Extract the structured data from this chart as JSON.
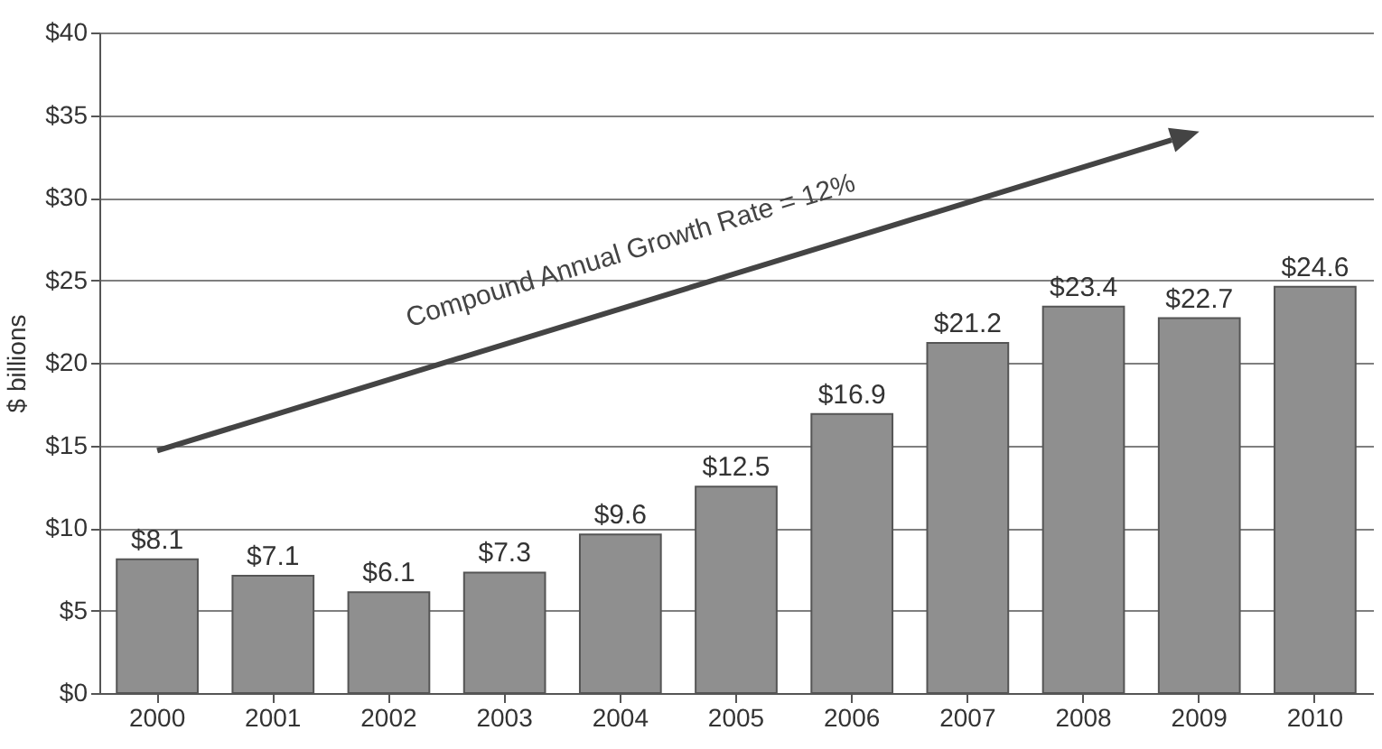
{
  "chart_data": {
    "type": "bar",
    "ylabel": "$ billions",
    "categories": [
      "2000",
      "2001",
      "2002",
      "2003",
      "2004",
      "2005",
      "2006",
      "2007",
      "2008",
      "2009",
      "2010"
    ],
    "values": [
      8.1,
      7.1,
      6.1,
      7.3,
      9.6,
      12.5,
      16.9,
      21.2,
      23.4,
      22.7,
      24.6
    ],
    "value_labels": [
      "$8.1",
      "$7.1",
      "$6.1",
      "$7.3",
      "$9.6",
      "$12.5",
      "$16.9",
      "$21.2",
      "$23.4",
      "$22.7",
      "$24.6"
    ],
    "color": "#8f8f8f",
    "ylim": [
      0,
      40
    ],
    "yticks": [
      {
        "value": 0,
        "label": "$0"
      },
      {
        "value": 5,
        "label": "$5"
      },
      {
        "value": 10,
        "label": "$10"
      },
      {
        "value": 15,
        "label": "$15"
      },
      {
        "value": 20,
        "label": "$20"
      },
      {
        "value": 25,
        "label": "$25"
      },
      {
        "value": 30,
        "label": "$30"
      },
      {
        "value": 35,
        "label": "$35"
      },
      {
        "value": 40,
        "label": "$40"
      }
    ],
    "grid": "y",
    "annotations": [
      "Compound Annual Growth Rate = 12%"
    ]
  }
}
